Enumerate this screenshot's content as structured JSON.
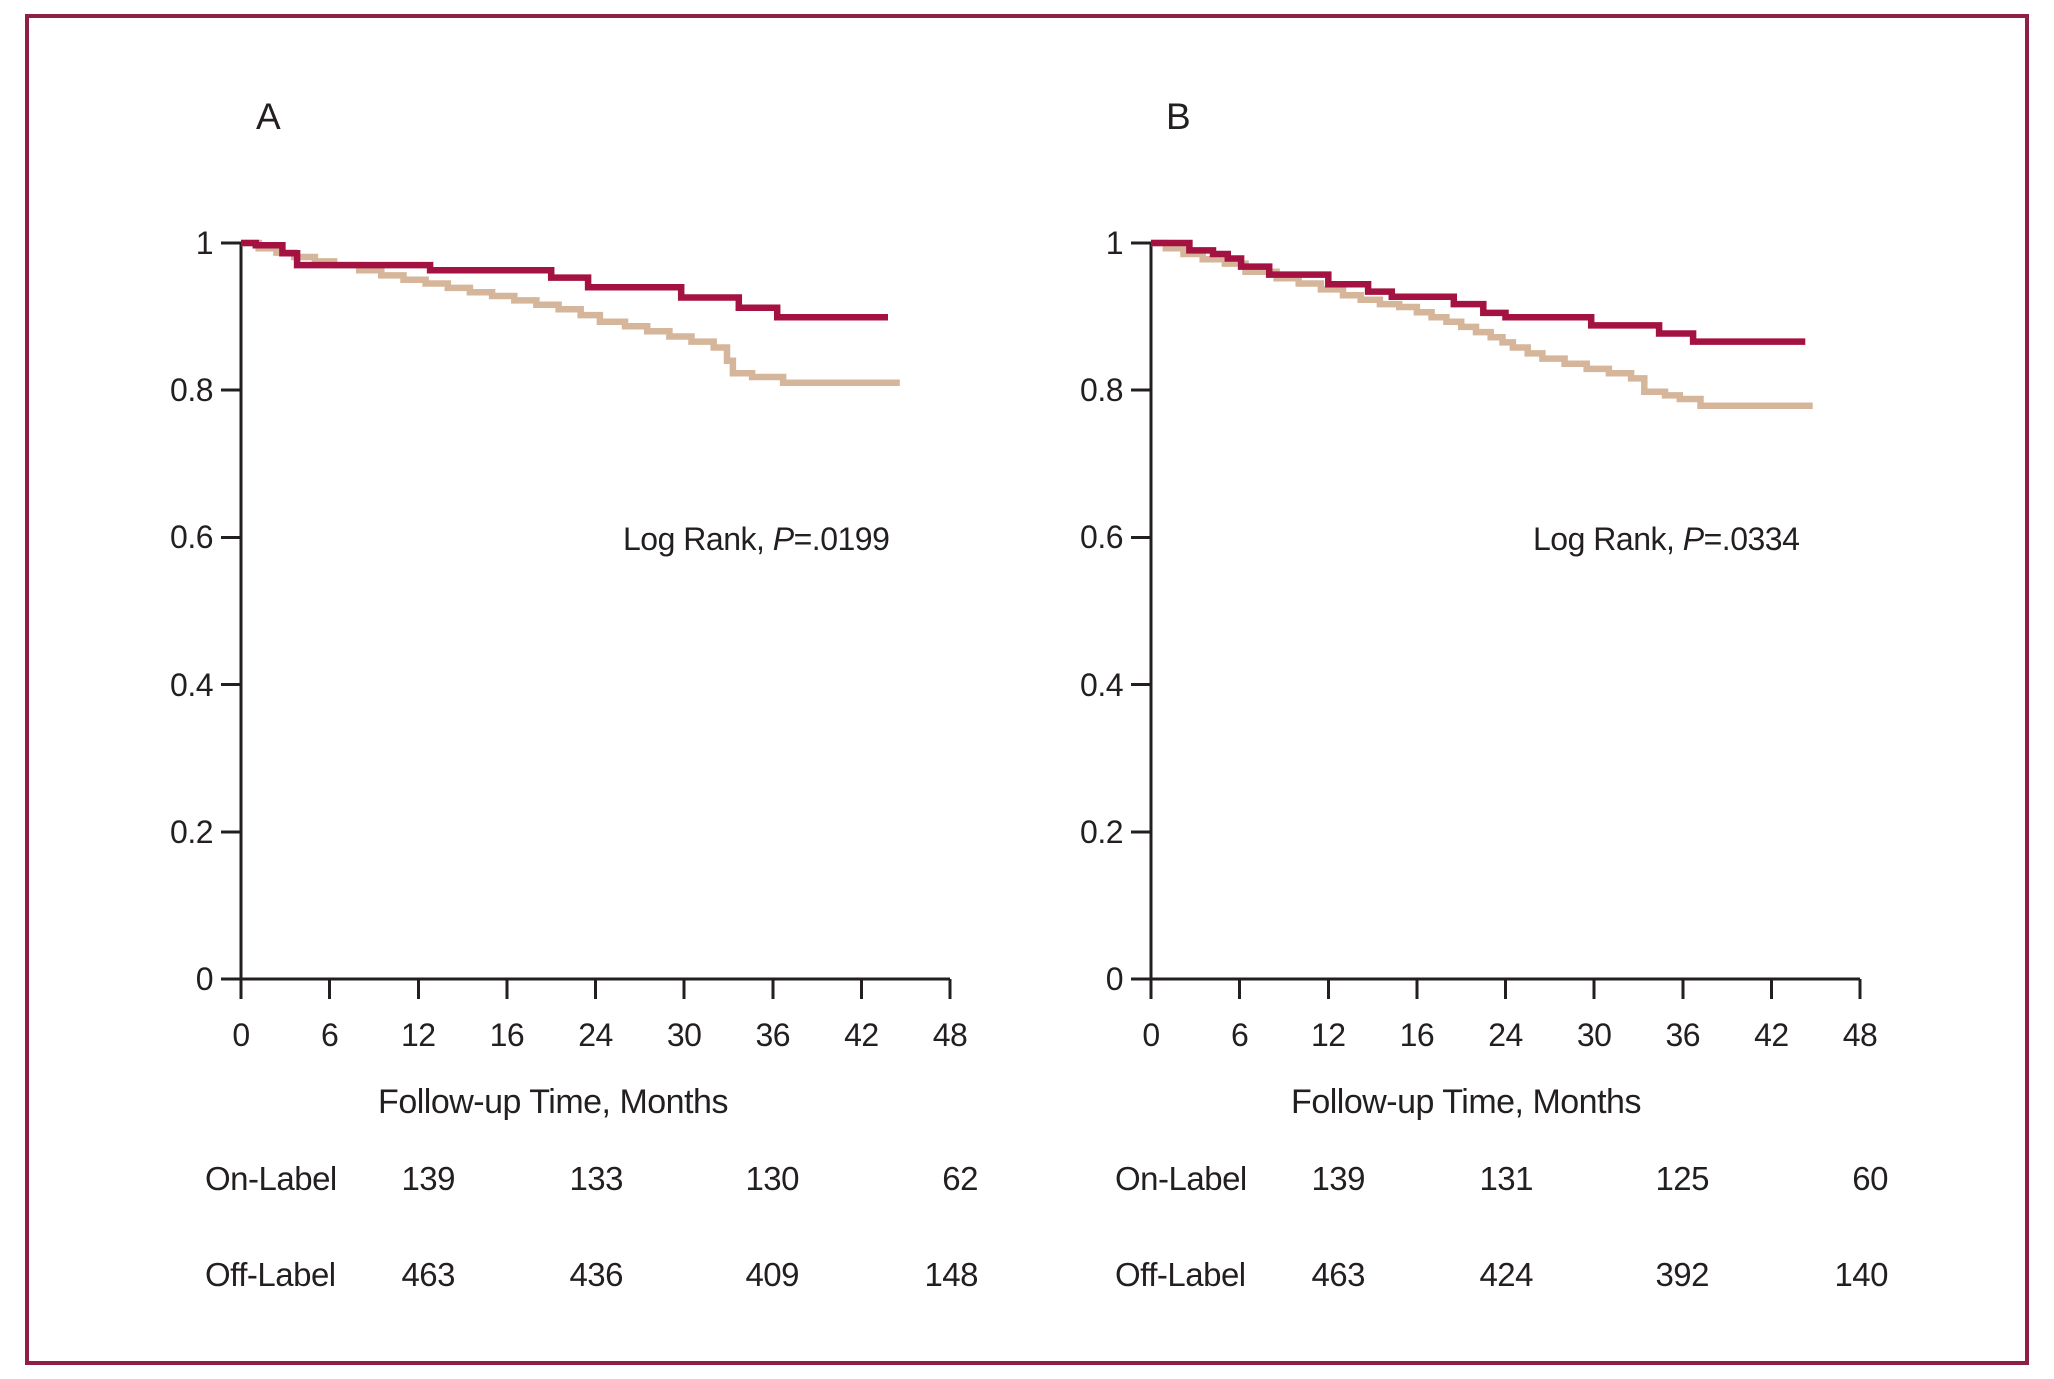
{
  "colors": {
    "on_label": "#A41241",
    "off_label": "#D5B69B",
    "figure_border": "#8E2143",
    "axis": "#231F20",
    "text": "#231F20"
  },
  "chart_data": [
    {
      "type": "line",
      "subtype": "kaplan-meier-step",
      "panel_label": "A",
      "xlabel": "Follow-up Time, Months",
      "ylabel": "",
      "xlim": [
        0,
        48
      ],
      "ylim": [
        0,
        1
      ],
      "grid": "off",
      "legend": "none",
      "x_tick_labels": [
        "0",
        "6",
        "12",
        "16",
        "24",
        "30",
        "36",
        "42",
        "48"
      ],
      "y_tick_labels": [
        "1",
        "0.8",
        "0.6",
        "0.4",
        "0.2",
        "0"
      ],
      "y_tick_values": [
        1,
        0.8,
        0.6,
        0.4,
        0.2,
        0
      ],
      "annotation": {
        "prefix": "Log Rank, ",
        "stat": "P",
        "value": "=.0199"
      },
      "series": [
        {
          "name": "Off-Label",
          "color_key": "off_label",
          "points": [
            [
              0,
              1.0
            ],
            [
              1.2,
              0.993
            ],
            [
              2.4,
              0.987
            ],
            [
              3.6,
              0.981
            ],
            [
              5,
              0.975
            ],
            [
              6.3,
              0.97
            ],
            [
              8,
              0.963
            ],
            [
              9.5,
              0.956
            ],
            [
              11,
              0.95
            ],
            [
              12.5,
              0.945
            ],
            [
              14,
              0.939
            ],
            [
              15.5,
              0.933
            ],
            [
              17,
              0.928
            ],
            [
              18.5,
              0.922
            ],
            [
              20,
              0.916
            ],
            [
              21.5,
              0.91
            ],
            [
              23,
              0.902
            ],
            [
              24.3,
              0.893
            ],
            [
              26,
              0.887
            ],
            [
              27.5,
              0.88
            ],
            [
              29,
              0.873
            ],
            [
              30.5,
              0.866
            ],
            [
              32,
              0.858
            ],
            [
              32.9,
              0.84
            ],
            [
              33.3,
              0.823
            ],
            [
              34.6,
              0.818
            ],
            [
              36.7,
              0.81
            ],
            [
              44.6,
              0.81
            ]
          ]
        },
        {
          "name": "On-Label",
          "color_key": "on_label",
          "points": [
            [
              0,
              1.0
            ],
            [
              1,
              0.997
            ],
            [
              2.8,
              0.986
            ],
            [
              3.8,
              0.97
            ],
            [
              12.8,
              0.963
            ],
            [
              21,
              0.953
            ],
            [
              23.5,
              0.94
            ],
            [
              29.8,
              0.926
            ],
            [
              33.7,
              0.912
            ],
            [
              36.3,
              0.899
            ],
            [
              43.8,
              0.899
            ]
          ]
        }
      ],
      "numbers_at_risk": {
        "months": [
          12,
          24,
          36,
          48
        ],
        "rows": [
          {
            "label": "On-Label",
            "values": [
              "139",
              "133",
              "130",
              "62"
            ]
          },
          {
            "label": "Off-Label",
            "values": [
              "463",
              "436",
              "409",
              "148"
            ]
          }
        ]
      }
    },
    {
      "type": "line",
      "subtype": "kaplan-meier-step",
      "panel_label": "B",
      "xlabel": "Follow-up Time, Months",
      "ylabel": "",
      "xlim": [
        0,
        48
      ],
      "ylim": [
        0,
        1
      ],
      "grid": "off",
      "legend": "none",
      "x_tick_labels": [
        "0",
        "6",
        "12",
        "16",
        "24",
        "30",
        "36",
        "42",
        "48"
      ],
      "y_tick_labels": [
        "1",
        "0.8",
        "0.6",
        "0.4",
        "0.2",
        "0"
      ],
      "y_tick_values": [
        1,
        0.8,
        0.6,
        0.4,
        0.2,
        0
      ],
      "annotation": {
        "prefix": "Log Rank, ",
        "stat": "P",
        "value": "=.0334"
      },
      "series": [
        {
          "name": "Off-Label",
          "color_key": "off_label",
          "points": [
            [
              0,
              1.0
            ],
            [
              1,
              0.993
            ],
            [
              2.2,
              0.985
            ],
            [
              3.5,
              0.978
            ],
            [
              5,
              0.972
            ],
            [
              6.4,
              0.961
            ],
            [
              8.5,
              0.952
            ],
            [
              10,
              0.945
            ],
            [
              11.5,
              0.937
            ],
            [
              13,
              0.929
            ],
            [
              14.2,
              0.923
            ],
            [
              15.5,
              0.917
            ],
            [
              16.8,
              0.913
            ],
            [
              18,
              0.906
            ],
            [
              19,
              0.899
            ],
            [
              20,
              0.893
            ],
            [
              21,
              0.886
            ],
            [
              22,
              0.879
            ],
            [
              23,
              0.872
            ],
            [
              23.8,
              0.865
            ],
            [
              24.5,
              0.858
            ],
            [
              25.5,
              0.85
            ],
            [
              26.5,
              0.843
            ],
            [
              28,
              0.836
            ],
            [
              29.5,
              0.829
            ],
            [
              31,
              0.823
            ],
            [
              32.5,
              0.816
            ],
            [
              33.4,
              0.798
            ],
            [
              34.8,
              0.793
            ],
            [
              35.8,
              0.788
            ],
            [
              37.2,
              0.779
            ],
            [
              44.8,
              0.779
            ]
          ]
        },
        {
          "name": "On-Label",
          "color_key": "on_label",
          "points": [
            [
              0,
              1.0
            ],
            [
              2.6,
              0.99
            ],
            [
              4.2,
              0.985
            ],
            [
              5.2,
              0.979
            ],
            [
              6.1,
              0.968
            ],
            [
              8,
              0.957
            ],
            [
              12,
              0.944
            ],
            [
              14.7,
              0.934
            ],
            [
              16.3,
              0.927
            ],
            [
              20.5,
              0.917
            ],
            [
              22.5,
              0.905
            ],
            [
              24,
              0.899
            ],
            [
              29.8,
              0.888
            ],
            [
              34.4,
              0.877
            ],
            [
              36.7,
              0.866
            ],
            [
              44.3,
              0.866
            ]
          ]
        }
      ],
      "numbers_at_risk": {
        "months": [
          12,
          24,
          36,
          48
        ],
        "rows": [
          {
            "label": "On-Label",
            "values": [
              "139",
              "131",
              "125",
              "60"
            ]
          },
          {
            "label": "Off-Label",
            "values": [
              "463",
              "424",
              "392",
              "140"
            ]
          }
        ]
      }
    }
  ]
}
